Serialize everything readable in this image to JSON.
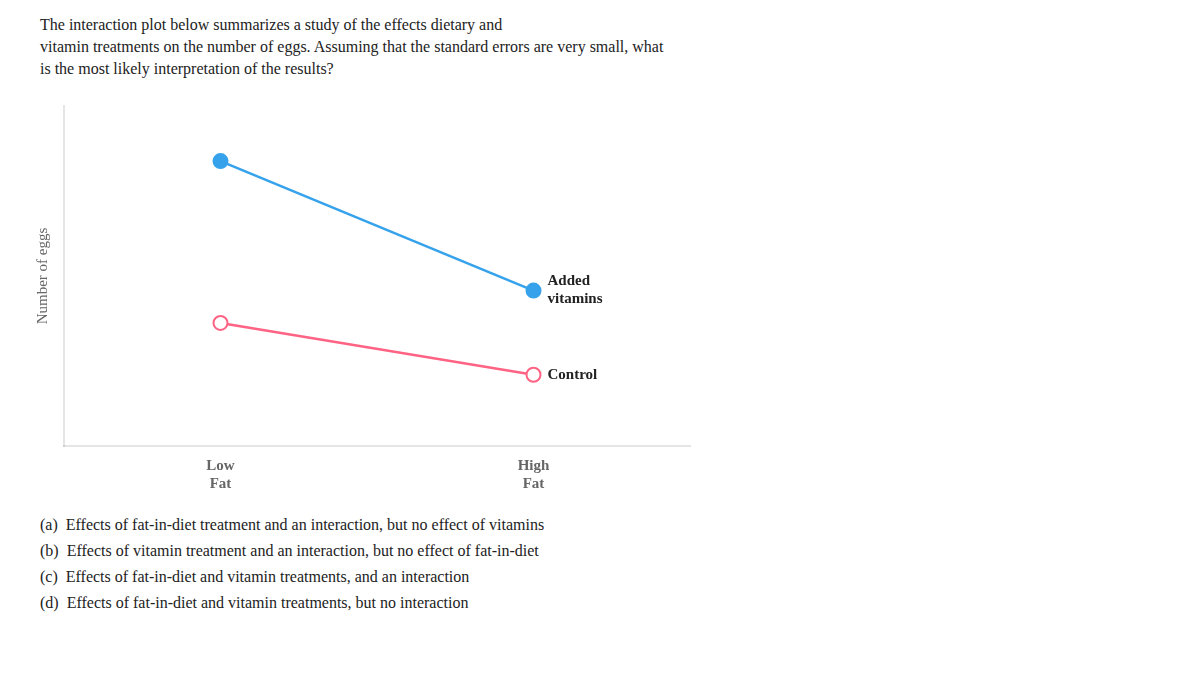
{
  "chart_data": {
    "type": "line",
    "title": "The interaction plot below summarizes a study of the effects dietary and\nvitamin treatments on the number of eggs. Assuming that the standard errors are very small, what\nis the most likely interpretation of the results?",
    "categories": [
      "Low\nFat",
      "High\nFat"
    ],
    "series": [
      {
        "name": "Added\nvitamins",
        "values": [
          0.88,
          0.48
        ],
        "marker": "filled_circle"
      },
      {
        "name": "Control",
        "values": [
          0.38,
          0.22
        ],
        "marker": "open_circle"
      }
    ],
    "y_label": "Number of eggs",
    "ylim": [
      0,
      1.05
    ],
    "yticks": [],
    "tick_labels": "x",
    "grid": false,
    "annotations": [
      "(a)  Effects of fat-in-diet treatment and an interaction, but no effect of vitamins",
      "(b)  Effects of vitamin treatment and an interaction, but no effect of fat-in-diet",
      "(c)  Effects of fat-in-diet and vitamin treatments, and an interaction",
      "(d)  Effects of fat-in-diet and vitamin treatments, but no interaction"
    ]
  }
}
